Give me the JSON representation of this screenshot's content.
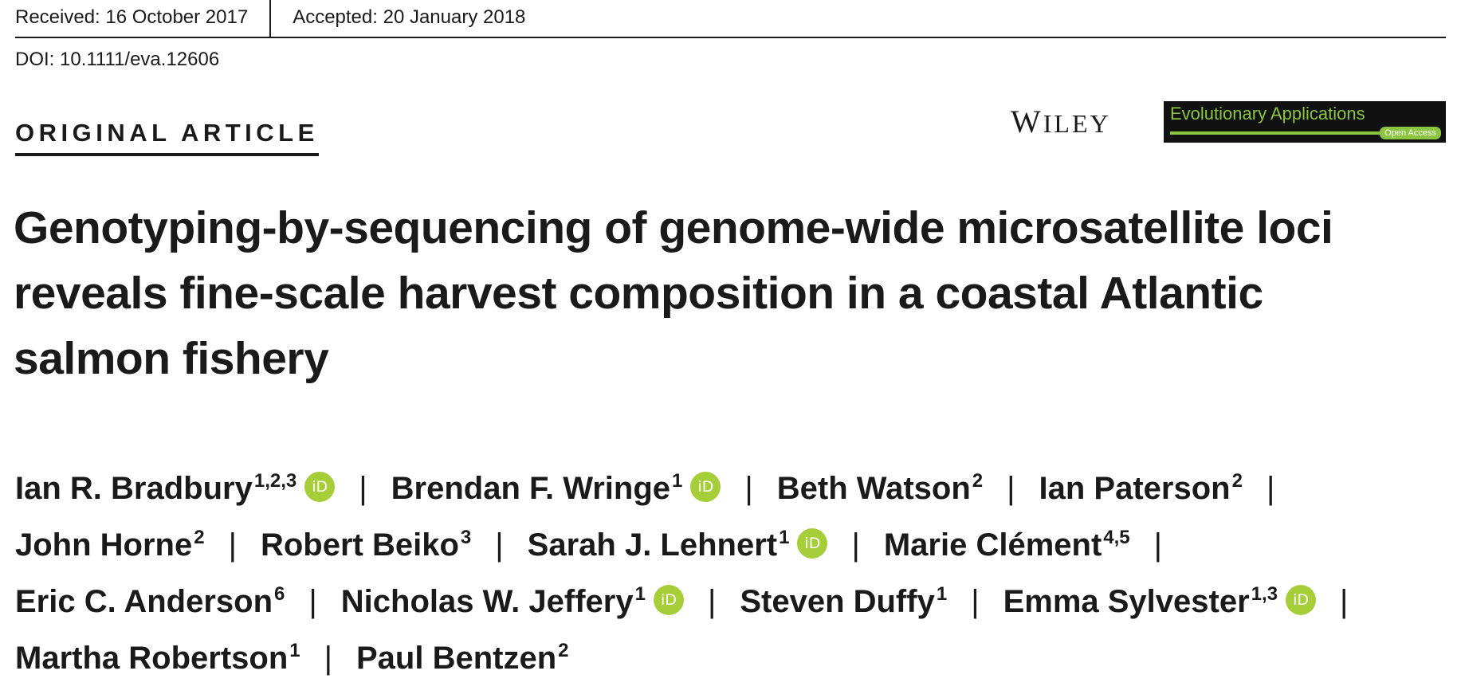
{
  "header": {
    "received": "Received: 16 October 2017",
    "accepted": "Accepted: 20 January 2018",
    "doi": "DOI: 10.1111/eva.12606"
  },
  "article_type": "ORIGINAL ARTICLE",
  "publisher": {
    "first_letter": "W",
    "rest": "ILEY"
  },
  "journal": {
    "name": "Evolutionary Applications",
    "access": "Open Access",
    "accent_color": "#8bc53f"
  },
  "title_lines": [
    "Genotyping-by-sequencing of genome-wide microsatellite loci",
    "reveals fine-scale harvest composition in a coastal Atlantic",
    "salmon fishery"
  ],
  "orcid_label": "iD",
  "separator": "|",
  "authors": [
    {
      "name": "Ian R. Bradbury",
      "aff": "1,2,3",
      "orcid": true
    },
    {
      "name": "Brendan F. Wringe",
      "aff": "1",
      "orcid": true
    },
    {
      "name": "Beth Watson",
      "aff": "2",
      "orcid": false
    },
    {
      "name": "Ian Paterson",
      "aff": "2",
      "orcid": false
    },
    {
      "name": "John Horne",
      "aff": "2",
      "orcid": false
    },
    {
      "name": "Robert Beiko",
      "aff": "3",
      "orcid": false
    },
    {
      "name": "Sarah J. Lehnert",
      "aff": "1",
      "orcid": true
    },
    {
      "name": "Marie Clément",
      "aff": "4,5",
      "orcid": false
    },
    {
      "name": "Eric C. Anderson",
      "aff": "6",
      "orcid": false
    },
    {
      "name": "Nicholas W. Jeffery",
      "aff": "1",
      "orcid": true
    },
    {
      "name": "Steven Duffy",
      "aff": "1",
      "orcid": false
    },
    {
      "name": "Emma Sylvester",
      "aff": "1,3",
      "orcid": true
    },
    {
      "name": "Martha Robertson",
      "aff": "1",
      "orcid": false
    },
    {
      "name": "Paul Bentzen",
      "aff": "2",
      "orcid": false
    }
  ]
}
